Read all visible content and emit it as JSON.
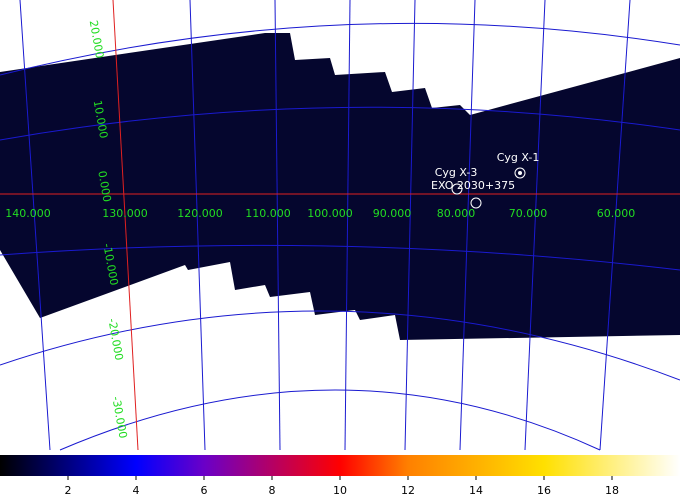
{
  "grid_labels": {
    "longitude": [
      "140.000",
      "130.000",
      "120.000",
      "110.000",
      "100.000",
      "90.000",
      "80.000",
      "70.000",
      "60.000"
    ],
    "latitude": [
      "20.000",
      "10.000",
      "0.000",
      "-10.000",
      "-20.000",
      "-30.000"
    ]
  },
  "sources": [
    {
      "label": "Cyg X-1"
    },
    {
      "label": "Cyg X-3"
    },
    {
      "label": "EXO 2030+375"
    }
  ],
  "colorbar": {
    "range": [
      0,
      20
    ],
    "ticks": [
      2,
      4,
      6,
      8,
      10,
      12,
      14,
      16,
      18
    ]
  }
}
